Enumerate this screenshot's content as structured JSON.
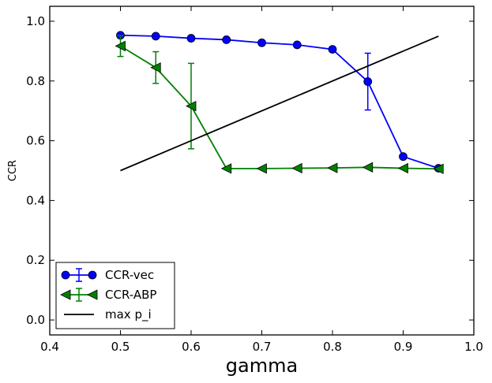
{
  "chart_data": {
    "type": "line",
    "title": "",
    "xlabel": "gamma",
    "ylabel": "CCR",
    "xlim": [
      0.4,
      1.0
    ],
    "ylim": [
      -0.05,
      1.05
    ],
    "xticks": [
      0.4,
      0.5,
      0.6,
      0.7,
      0.8,
      0.9,
      1.0
    ],
    "xtick_labels": [
      "0.4",
      "0.5",
      "0.6",
      "0.7",
      "0.8",
      "0.9",
      "1.0"
    ],
    "yticks": [
      0.0,
      0.2,
      0.4,
      0.6,
      0.8,
      1.0
    ],
    "ytick_labels": [
      "0.0",
      "0.2",
      "0.4",
      "0.6",
      "0.8",
      "1.0"
    ],
    "grid": false,
    "legend_position": "lower-left",
    "series": [
      {
        "name": "CCR-vec",
        "color": "#0000ff",
        "marker": "circle",
        "x": [
          0.5,
          0.55,
          0.6,
          0.65,
          0.7,
          0.75,
          0.8,
          0.85,
          0.9,
          0.95
        ],
        "y": [
          0.953,
          0.95,
          0.943,
          0.938,
          0.928,
          0.921,
          0.906,
          0.798,
          0.547,
          0.508
        ],
        "yerr": [
          0,
          0,
          0,
          0,
          0,
          0,
          0,
          0.095,
          0,
          0
        ]
      },
      {
        "name": "CCR-ABP",
        "color": "#008000",
        "marker": "triangle-left",
        "x": [
          0.5,
          0.55,
          0.6,
          0.65,
          0.7,
          0.75,
          0.8,
          0.85,
          0.9,
          0.95
        ],
        "y": [
          0.917,
          0.845,
          0.716,
          0.507,
          0.507,
          0.508,
          0.509,
          0.511,
          0.508,
          0.506
        ],
        "yerr": [
          0.035,
          0.053,
          0.143,
          0,
          0,
          0,
          0,
          0,
          0,
          0
        ]
      },
      {
        "name": "max p_i",
        "color": "#000000",
        "marker": "none",
        "x": [
          0.5,
          0.95
        ],
        "y": [
          0.5,
          0.95
        ],
        "yerr": [
          0,
          0
        ]
      }
    ]
  }
}
